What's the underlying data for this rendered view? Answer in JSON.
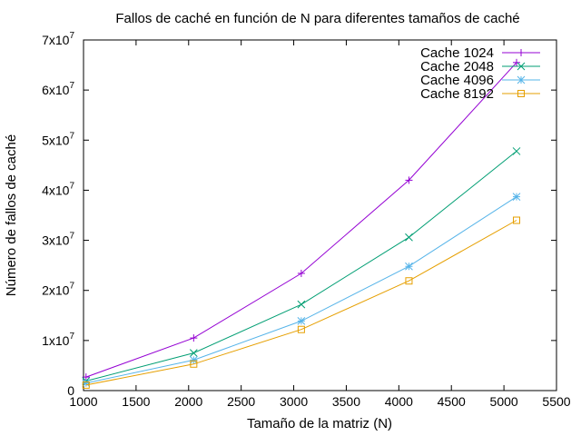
{
  "chart_data": {
    "type": "line",
    "title": "Fallos de caché en función de N para diferentes tamaños de caché",
    "xlabel": "Tamaño de la matriz (N)",
    "ylabel": "Número de fallos de caché",
    "xlim": [
      1000,
      5500
    ],
    "ylim": [
      0,
      70000000
    ],
    "xticks": [
      1000,
      1500,
      2000,
      2500,
      3000,
      3500,
      4000,
      4500,
      5000,
      5500
    ],
    "xtick_labels": [
      "1000",
      "1500",
      "2000",
      "2500",
      "3000",
      "3500",
      "4000",
      "4500",
      "5000",
      "5500"
    ],
    "yticks": [
      0,
      10000000,
      20000000,
      30000000,
      40000000,
      50000000,
      60000000,
      70000000
    ],
    "ytick_labels": [
      {
        "mantissa": "0",
        "exponent": ""
      },
      {
        "mantissa": "1x10",
        "exponent": "7"
      },
      {
        "mantissa": "2x10",
        "exponent": "7"
      },
      {
        "mantissa": "3x10",
        "exponent": "7"
      },
      {
        "mantissa": "4x10",
        "exponent": "7"
      },
      {
        "mantissa": "5x10",
        "exponent": "7"
      },
      {
        "mantissa": "6x10",
        "exponent": "7"
      },
      {
        "mantissa": "7x10",
        "exponent": "7"
      }
    ],
    "x": [
      1024,
      2048,
      3072,
      4096,
      5120
    ],
    "grid": false,
    "legend_position": "top-right",
    "series": [
      {
        "name": "Cache 1024",
        "color": "#9400d3",
        "marker": "plus",
        "values": [
          2700000,
          10500000,
          23400000,
          42000000,
          65500000
        ]
      },
      {
        "name": "Cache 2048",
        "color": "#009e73",
        "marker": "cross",
        "values": [
          1900000,
          7500000,
          17200000,
          30600000,
          47800000
        ]
      },
      {
        "name": "Cache 4096",
        "color": "#56b4e9",
        "marker": "star",
        "values": [
          1500000,
          6100000,
          13900000,
          24800000,
          38700000
        ]
      },
      {
        "name": "Cache 8192",
        "color": "#e69f00",
        "marker": "square",
        "values": [
          1100000,
          5300000,
          12200000,
          21900000,
          34000000
        ]
      }
    ]
  }
}
